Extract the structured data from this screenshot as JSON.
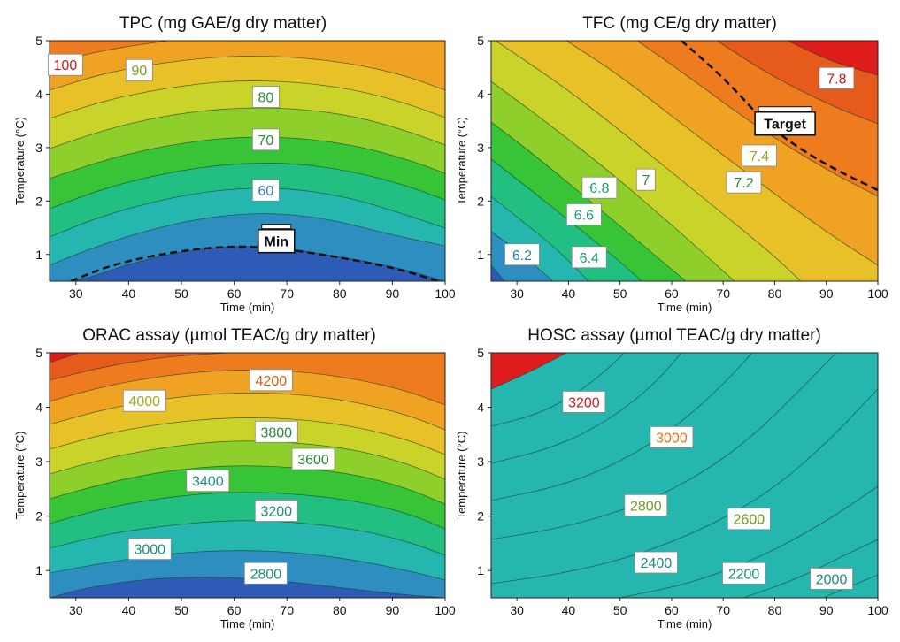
{
  "chart_data": [
    {
      "type": "contour",
      "title": "TPC (mg GAE/g  dry matter)",
      "xlabel": "Time (min)",
      "ylabel": "Temperature  (°C)",
      "xlim": [
        25,
        100
      ],
      "ylim": [
        0.5,
        5
      ],
      "x_ticks": [
        "30",
        "40",
        "50",
        "60",
        "70",
        "80",
        "90",
        "100"
      ],
      "y_ticks": [
        "1",
        "2",
        "3",
        "4",
        "5"
      ],
      "contour_labels": [
        {
          "text": "100",
          "x": 28,
          "y": 4.55
        },
        {
          "text": "90",
          "x": 42,
          "y": 4.45
        },
        {
          "text": "80",
          "x": 66,
          "y": 3.95
        },
        {
          "text": "70",
          "x": 66,
          "y": 3.15
        },
        {
          "text": "60",
          "x": 66,
          "y": 2.2
        }
      ],
      "markers": [
        {
          "text": "Min",
          "x": 68,
          "y": 1.2
        }
      ],
      "dashed_level": "Min"
    },
    {
      "type": "contour",
      "title": "TFC (mg CE/g dry matter)",
      "xlabel": "Time (min)",
      "ylabel": "Temperature  (°C)",
      "xlim": [
        25,
        100
      ],
      "ylim": [
        0.5,
        5
      ],
      "x_ticks": [
        "30",
        "40",
        "50",
        "60",
        "70",
        "80",
        "90",
        "100"
      ],
      "y_ticks": [
        "1",
        "2",
        "3",
        "4",
        "5"
      ],
      "contour_labels": [
        {
          "text": "7.8",
          "x": 92,
          "y": 4.3
        },
        {
          "text": "7.4",
          "x": 77,
          "y": 2.85
        },
        {
          "text": "7.2",
          "x": 74,
          "y": 2.35
        },
        {
          "text": "7",
          "x": 55,
          "y": 2.4
        },
        {
          "text": "6.8",
          "x": 46,
          "y": 2.25
        },
        {
          "text": "6.6",
          "x": 43,
          "y": 1.75
        },
        {
          "text": "6.4",
          "x": 44,
          "y": 0.95
        },
        {
          "text": "6.2",
          "x": 31,
          "y": 1.0
        }
      ],
      "markers": [
        {
          "text": "Target",
          "x": 82,
          "y": 3.4
        }
      ],
      "dashed_level": "Target"
    },
    {
      "type": "contour",
      "title": "ORAC assay (µmol TEAC/g dry matter)",
      "xlabel": "Time (min)",
      "ylabel": "Temperature  (°C)",
      "xlim": [
        25,
        100
      ],
      "ylim": [
        0.5,
        5
      ],
      "x_ticks": [
        "30",
        "40",
        "50",
        "60",
        "70",
        "80",
        "90",
        "100"
      ],
      "y_ticks": [
        "1",
        "2",
        "3",
        "4",
        "5"
      ],
      "contour_labels": [
        {
          "text": "4200",
          "x": 67,
          "y": 4.5
        },
        {
          "text": "4000",
          "x": 43,
          "y": 4.12
        },
        {
          "text": "3800",
          "x": 68,
          "y": 3.55
        },
        {
          "text": "3600",
          "x": 75,
          "y": 3.05
        },
        {
          "text": "3400",
          "x": 55,
          "y": 2.65
        },
        {
          "text": "3200",
          "x": 68,
          "y": 2.1
        },
        {
          "text": "3000",
          "x": 44,
          "y": 1.4
        },
        {
          "text": "2800",
          "x": 66,
          "y": 0.95
        }
      ],
      "markers": [],
      "dashed_level": null
    },
    {
      "type": "contour",
      "title": "HOSC assay (µmol TEAC/g dry matter)",
      "xlabel": "Time (min)",
      "ylabel": "Temperature  (°C)",
      "xlim": [
        25,
        100
      ],
      "ylim": [
        0.5,
        5
      ],
      "x_ticks": [
        "30",
        "40",
        "50",
        "60",
        "70",
        "80",
        "90",
        "100"
      ],
      "y_ticks": [
        "1",
        "2",
        "3",
        "4",
        "5"
      ],
      "contour_labels": [
        {
          "text": "3200",
          "x": 43,
          "y": 4.1
        },
        {
          "text": "3000",
          "x": 60,
          "y": 3.45
        },
        {
          "text": "2800",
          "x": 55,
          "y": 2.2
        },
        {
          "text": "2600",
          "x": 75,
          "y": 1.95
        },
        {
          "text": "2400",
          "x": 57,
          "y": 1.15
        },
        {
          "text": "2200",
          "x": 74,
          "y": 0.95
        },
        {
          "text": "2000",
          "x": 91,
          "y": 0.85
        }
      ],
      "markers": [],
      "dashed_level": null
    }
  ],
  "colormap": [
    "#2e5bb5",
    "#2f8ec0",
    "#25b6b0",
    "#21bf82",
    "#37c436",
    "#8fcf2c",
    "#c9d32a",
    "#e8c028",
    "#f0a222",
    "#ef7b1f",
    "#e65a1c",
    "#de1c1c"
  ]
}
